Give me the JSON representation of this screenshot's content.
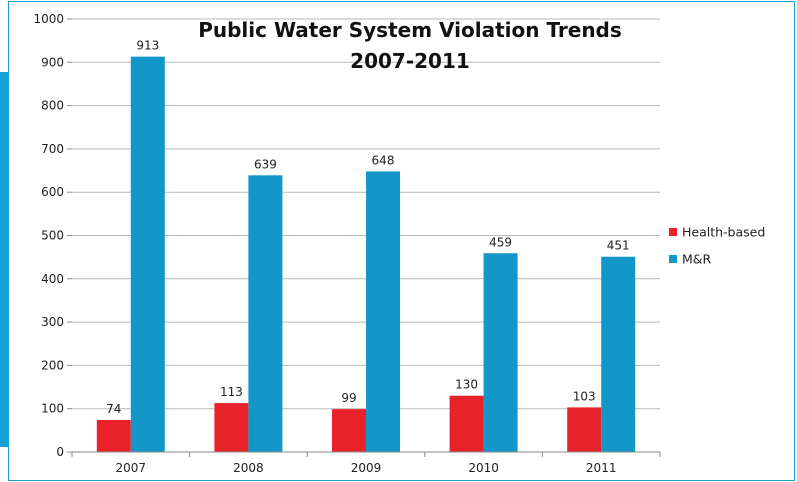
{
  "chart_data": {
    "type": "bar",
    "title_lines": [
      "Public Water System Violation Trends",
      "2007-2011"
    ],
    "categories": [
      "2007",
      "2008",
      "2009",
      "2010",
      "2011"
    ],
    "series": [
      {
        "name": "Health-based",
        "color": "#e8222a",
        "values": [
          74,
          113,
          99,
          130,
          103
        ]
      },
      {
        "name": "M&R",
        "color": "#1297c8",
        "values": [
          913,
          639,
          648,
          459,
          451
        ]
      }
    ],
    "ylim": [
      0,
      1000
    ],
    "yticks": [
      "0",
      "100",
      "200",
      "300",
      "400",
      "500",
      "600",
      "700",
      "800",
      "900",
      "1000"
    ],
    "grid": true,
    "legend_position": "right"
  },
  "colors": {
    "frame_border": "#1aa1d6",
    "left_accent": "#16a0d8",
    "grid": "#b9b9b9",
    "axis": "#8a8a8a"
  }
}
